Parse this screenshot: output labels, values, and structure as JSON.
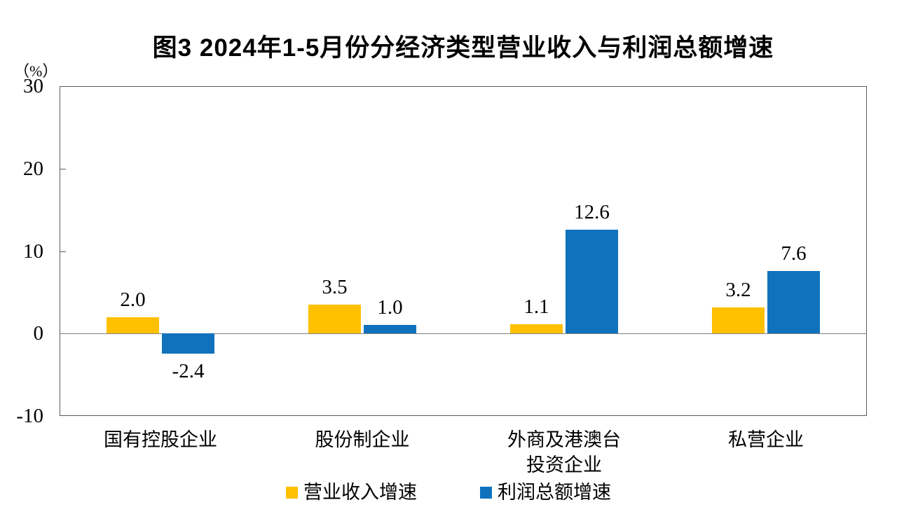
{
  "chart_data": {
    "type": "bar",
    "title": "图3  2024年1-5月份分经济类型营业收入与利润总额增速",
    "unit_label": "（%）",
    "categories": [
      "国有控股企业",
      "股份制企业",
      "外商及港澳台\n投资企业",
      "私营企业"
    ],
    "series": [
      {
        "name": "营业收入增速",
        "color": "#FFC000",
        "values": [
          2.0,
          3.5,
          1.1,
          3.2
        ],
        "labels": [
          "2.0",
          "3.5",
          "1.1",
          "3.2"
        ]
      },
      {
        "name": "利润总额增速",
        "color": "#1072BC",
        "values": [
          -2.4,
          1.0,
          12.6,
          7.6
        ],
        "labels": [
          "-2.4",
          "1.0",
          "12.6",
          "7.6"
        ]
      }
    ],
    "ylim": [
      -10,
      30
    ],
    "yticks": [
      30,
      20,
      10,
      0,
      -10
    ],
    "ytick_labels": [
      "30",
      "20",
      "10",
      "0",
      "-10"
    ],
    "xlabel": "",
    "ylabel": "",
    "grid": "zero-line-only",
    "legend_position": "bottom",
    "colors": {
      "axis_border": "#5a5a5a",
      "zero_line": "#808080",
      "text": "#000000"
    }
  }
}
